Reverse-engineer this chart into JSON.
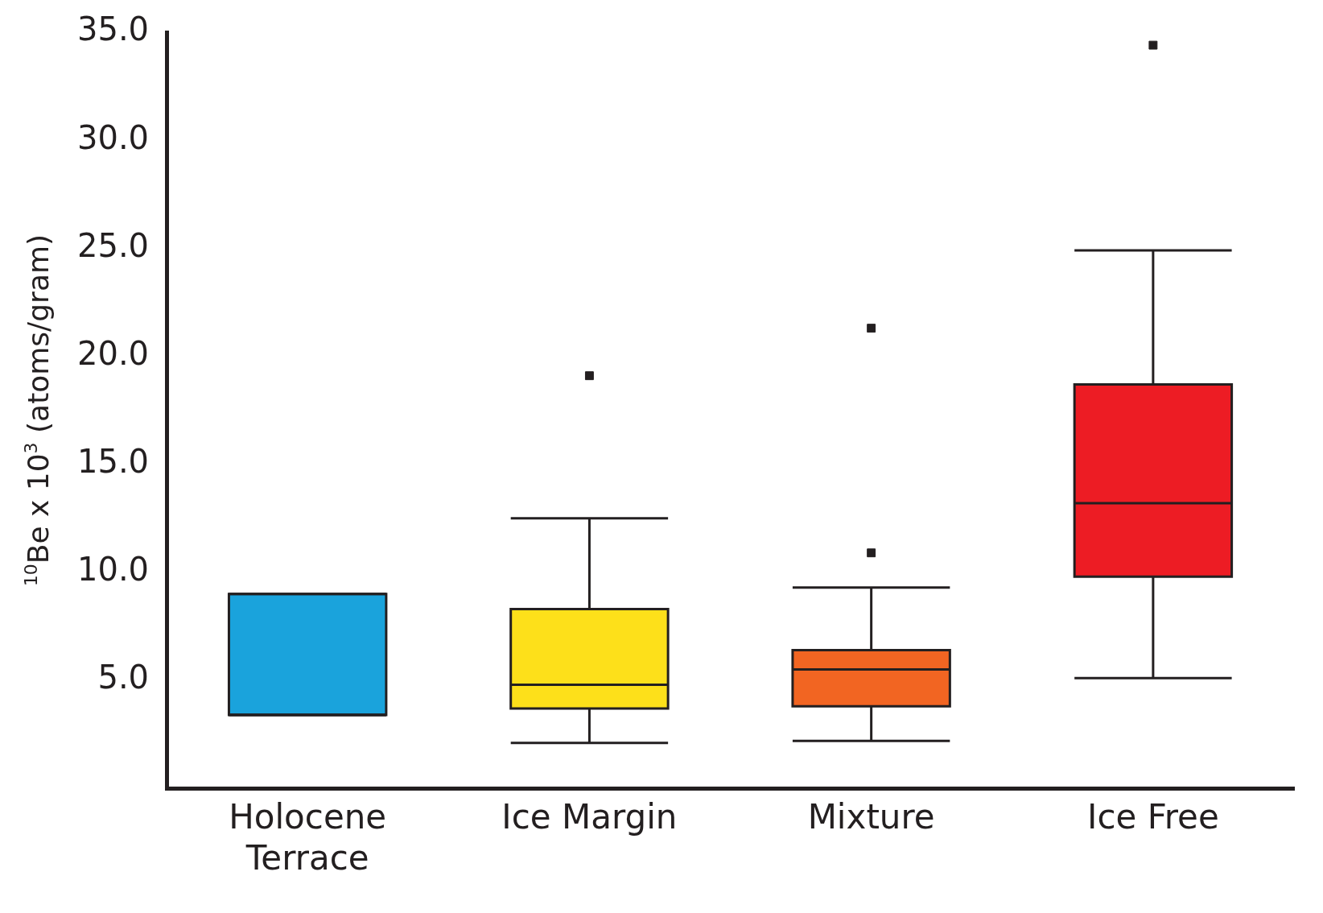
{
  "chart_data": {
    "type": "box",
    "ylabel": "$^{10}$Be x 10$^{3}$ (atoms/gram)",
    "categories": [
      "Holocene Terrace",
      "Ice Margin",
      "Mixture",
      "Ice Free"
    ],
    "colors": [
      "#1aa3dc",
      "#fde01a",
      "#f26522",
      "#ed1c24"
    ],
    "boxes": [
      {
        "low": 3.4,
        "q1": 3.4,
        "median": 3.4,
        "q3": 9.0,
        "high": 9.0
      },
      {
        "low": 2.1,
        "q1": 3.7,
        "median": 4.8,
        "q3": 8.3,
        "high": 12.5,
        "outliers": [
          19.1
        ]
      },
      {
        "low": 2.2,
        "q1": 3.8,
        "median": 5.5,
        "q3": 6.4,
        "high": 9.3,
        "outliers": [
          21.3,
          10.9
        ]
      },
      {
        "low": 5.1,
        "q1": 9.8,
        "median": 13.2,
        "q3": 18.7,
        "high": 24.9,
        "outliers": [
          34.4
        ]
      }
    ],
    "ylim": [
      0,
      35
    ],
    "yticks": [
      {
        "value": 5,
        "label": "5.0"
      },
      {
        "value": 10,
        "label": "10.0"
      },
      {
        "value": 15,
        "label": "15.0"
      },
      {
        "value": 20,
        "label": "20.0"
      },
      {
        "value": 25,
        "label": "25.0"
      },
      {
        "value": 30,
        "label": "30.0"
      },
      {
        "value": 35,
        "label": "35.0"
      }
    ],
    "grid": false,
    "legend": false,
    "marker": "square"
  }
}
